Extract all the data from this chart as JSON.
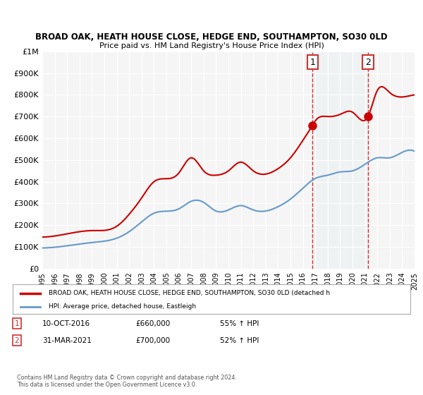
{
  "title": "BROAD OAK, HEATH HOUSE CLOSE, HEDGE END, SOUTHAMPTON, SO30 0LD",
  "subtitle": "Price paid vs. HM Land Registry's House Price Index (HPI)",
  "xlabel": "",
  "ylabel": "",
  "ylim": [
    0,
    1000000
  ],
  "xlim": [
    1995,
    2025
  ],
  "yticks": [
    0,
    100000,
    200000,
    300000,
    400000,
    500000,
    600000,
    700000,
    800000,
    900000,
    1000000
  ],
  "ytick_labels": [
    "£0",
    "£100K",
    "£200K",
    "£300K",
    "£400K",
    "£500K",
    "£600K",
    "£700K",
    "£800K",
    "£900K",
    "£1M"
  ],
  "xticks": [
    1995,
    1996,
    1997,
    1998,
    1999,
    2000,
    2001,
    2002,
    2003,
    2004,
    2005,
    2006,
    2007,
    2008,
    2009,
    2010,
    2011,
    2012,
    2013,
    2014,
    2015,
    2016,
    2017,
    2018,
    2019,
    2020,
    2021,
    2022,
    2023,
    2024,
    2025
  ],
  "red_color": "#cc0000",
  "blue_color": "#6699cc",
  "bg_color": "#ffffff",
  "plot_bg_color": "#f5f5f5",
  "grid_color": "#ffffff",
  "point1_x": 2016.78,
  "point1_y": 660000,
  "point2_x": 2021.25,
  "point2_y": 700000,
  "point1_label": "1",
  "point2_label": "2",
  "legend_label_red": "BROAD OAK, HEATH HOUSE CLOSE, HEDGE END, SOUTHAMPTON, SO30 0LD (detached h",
  "legend_label_blue": "HPI: Average price, detached house, Eastleigh",
  "annotation1_date": "10-OCT-2016",
  "annotation1_price": "£660,000",
  "annotation1_hpi": "55% ↑ HPI",
  "annotation2_date": "31-MAR-2021",
  "annotation2_price": "£700,000",
  "annotation2_hpi": "52% ↑ HPI",
  "footer": "Contains HM Land Registry data © Crown copyright and database right 2024.\nThis data is licensed under the Open Government Licence v3.0."
}
